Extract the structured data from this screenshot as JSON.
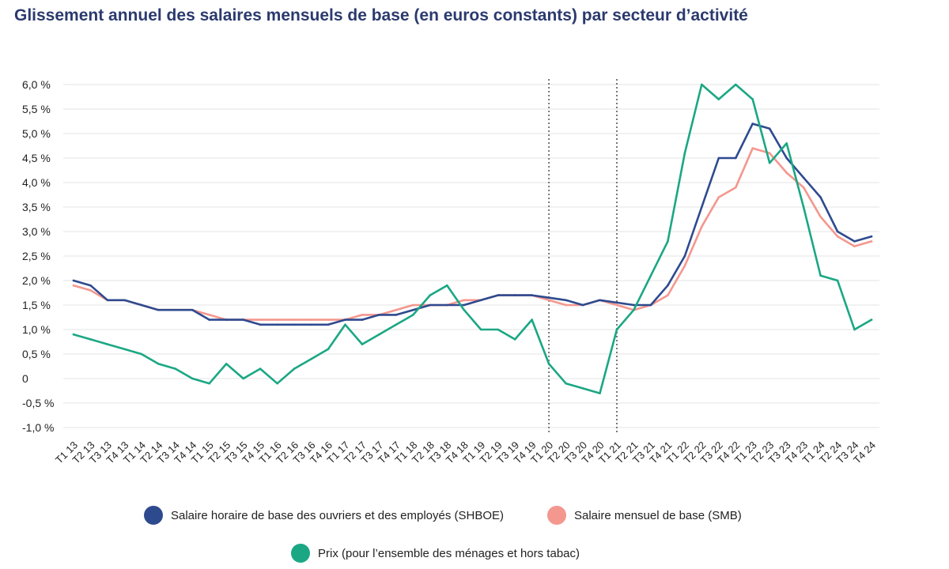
{
  "chart_data": {
    "type": "line",
    "title": "Glissement annuel des salaires mensuels de base (en euros constants) par secteur d’activité",
    "x": [
      "T1 13",
      "T2 13",
      "T3 13",
      "T4 13",
      "T1 14",
      "T2 14",
      "T3 14",
      "T4 14",
      "T1 15",
      "T2 15",
      "T3 15",
      "T4 15",
      "T1 16",
      "T2 16",
      "T3 16",
      "T4 16",
      "T1 17",
      "T2 17",
      "T3 17",
      "T4 17",
      "T1 18",
      "T2 18",
      "T3 18",
      "T4 18",
      "T1 19",
      "T2 19",
      "T3 19",
      "T4 19",
      "T1 20",
      "T2 20",
      "T3 20",
      "T4 20",
      "T1 21",
      "T2 21",
      "T3 21",
      "T4 21",
      "T1 22",
      "T2 22",
      "T3 22",
      "T4 22",
      "T1 23",
      "T2 23",
      "T3 23",
      "T4 23",
      "T1 24",
      "T2 24",
      "T3 24",
      "T4 24"
    ],
    "y_ticks": [
      {
        "value": 6.0,
        "label": "6,0 %"
      },
      {
        "value": 5.5,
        "label": "5,5 %"
      },
      {
        "value": 5.0,
        "label": "5,0 %"
      },
      {
        "value": 4.5,
        "label": "4,5 %"
      },
      {
        "value": 4.0,
        "label": "4,0 %"
      },
      {
        "value": 3.5,
        "label": "3,5 %"
      },
      {
        "value": 3.0,
        "label": "3,0 %"
      },
      {
        "value": 2.5,
        "label": "2,5 %"
      },
      {
        "value": 2.0,
        "label": "2,0 %"
      },
      {
        "value": 1.5,
        "label": "1,5 %"
      },
      {
        "value": 1.0,
        "label": "1,0 %"
      },
      {
        "value": 0.5,
        "label": "0,5 %"
      },
      {
        "value": 0.0,
        "label": "0"
      },
      {
        "value": -0.5,
        "label": "-0,5 %"
      },
      {
        "value": -1.0,
        "label": "-1,0 %"
      }
    ],
    "ylim": [
      -1.0,
      6.0
    ],
    "grid": true,
    "legend_position": "bottom",
    "vertical_markers": [
      "T1 20",
      "T1 21"
    ],
    "series": [
      {
        "name": "Salaire horaire de base des ouvriers et des employés (SHBOE)",
        "color": "#2e4a8f",
        "values": [
          2.0,
          1.9,
          1.6,
          1.6,
          1.5,
          1.4,
          1.4,
          1.4,
          1.2,
          1.2,
          1.2,
          1.1,
          1.1,
          1.1,
          1.1,
          1.1,
          1.2,
          1.2,
          1.3,
          1.3,
          1.4,
          1.5,
          1.5,
          1.5,
          1.6,
          1.7,
          1.7,
          1.7,
          1.65,
          1.6,
          1.5,
          1.6,
          1.55,
          1.5,
          1.5,
          1.9,
          2.5,
          3.5,
          4.5,
          4.5,
          5.2,
          5.1,
          4.5,
          4.1,
          3.7,
          3.0,
          2.8,
          2.9
        ]
      },
      {
        "name": "Salaire mensuel de base (SMB)",
        "color": "#f4978e",
        "values": [
          1.9,
          1.8,
          1.6,
          1.6,
          1.5,
          1.4,
          1.4,
          1.4,
          1.3,
          1.2,
          1.2,
          1.2,
          1.2,
          1.2,
          1.2,
          1.2,
          1.2,
          1.3,
          1.3,
          1.4,
          1.5,
          1.5,
          1.5,
          1.6,
          1.6,
          1.7,
          1.7,
          1.7,
          1.6,
          1.5,
          1.5,
          1.6,
          1.5,
          1.4,
          1.5,
          1.7,
          2.3,
          3.1,
          3.7,
          3.9,
          4.7,
          4.6,
          4.2,
          3.9,
          3.3,
          2.9,
          2.7,
          2.8
        ]
      },
      {
        "name": "Prix (pour l’ensemble des ménages et hors tabac)",
        "color": "#1ba784",
        "values": [
          0.9,
          0.8,
          0.7,
          0.6,
          0.5,
          0.3,
          0.2,
          0.0,
          -0.1,
          0.3,
          0.0,
          0.2,
          -0.1,
          0.2,
          0.4,
          0.6,
          1.1,
          0.7,
          0.9,
          1.1,
          1.3,
          1.7,
          1.9,
          1.4,
          1.0,
          1.0,
          0.8,
          1.2,
          0.3,
          -0.1,
          -0.2,
          -0.3,
          1.0,
          1.4,
          2.1,
          2.8,
          4.6,
          6.0,
          5.7,
          6.0,
          5.7,
          4.4,
          4.8,
          3.5,
          2.1,
          2.0,
          1.0,
          1.2
        ]
      }
    ]
  }
}
